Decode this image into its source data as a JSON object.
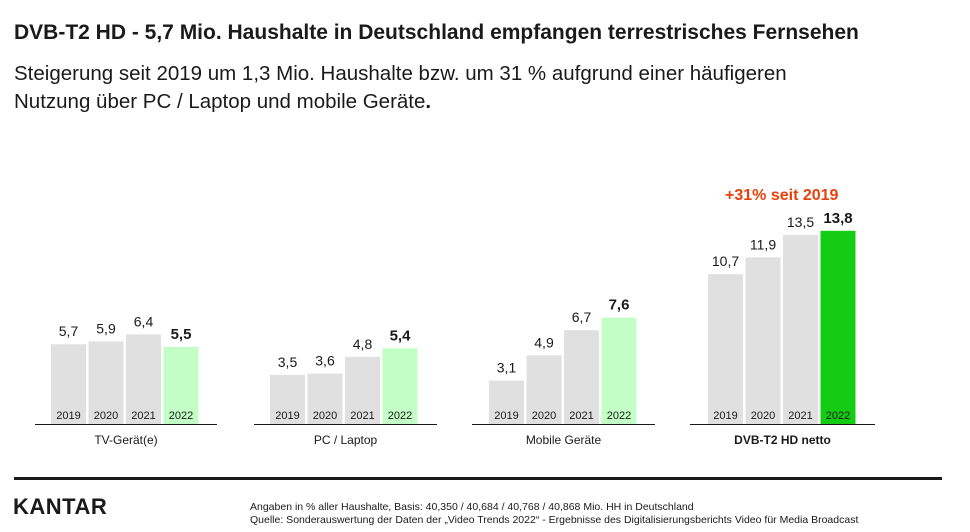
{
  "header": {
    "title": "DVB-T2 HD - 5,7 Mio. Haushalte in Deutschland empfangen terrestrisches Fernsehen",
    "subtitle_line1": "Steigerung seit 2019 um 1,3 Mio. Haushalte bzw. um 31 % aufgrund einer häufigeren",
    "subtitle_line2": "Nutzung über PC / Laptop und mobile Geräte",
    "subtitle_end": "."
  },
  "chart_data": {
    "type": "bar",
    "years": [
      "2019",
      "2020",
      "2021",
      "2022"
    ],
    "groups": [
      {
        "label": "TV-Gerät(e)",
        "values": [
          5.7,
          5.9,
          6.4,
          5.5
        ],
        "value_labels": [
          "5,7",
          "5,9",
          "6,4",
          "5,5"
        ],
        "highlight_color": "#c2fec6",
        "label_bold": false
      },
      {
        "label": "PC / Laptop",
        "values": [
          3.5,
          3.6,
          4.8,
          5.4
        ],
        "value_labels": [
          "3,5",
          "3,6",
          "4,8",
          "5,4"
        ],
        "highlight_color": "#c2fec6",
        "label_bold": false
      },
      {
        "label": "Mobile Geräte",
        "values": [
          3.1,
          4.9,
          6.7,
          7.6
        ],
        "value_labels": [
          "3,1",
          "4,9",
          "6,7",
          "7,6"
        ],
        "highlight_color": "#c2fec6",
        "label_bold": false
      },
      {
        "label": "DVB-T2 HD netto",
        "values": [
          10.7,
          11.9,
          13.5,
          13.8
        ],
        "value_labels": [
          "10,7",
          "11,9",
          "13,5",
          "13,8"
        ],
        "highlight_color": "#14cc14",
        "label_bold": true
      }
    ],
    "annotation": "+31% seit 2019",
    "colors": {
      "past_years": "#e0e0e0",
      "annotation": "#e8400c",
      "axis": "#1a1a1a"
    }
  },
  "footer": {
    "logo": "KANTAR",
    "note_line1": "Angaben in % aller Haushalte, Basis: 40,350 / 40,684 / 40,768 / 40,868 Mio. HH in Deutschland",
    "note_line2": "Quelle: Sonderauswertung der Daten der „Video Trends 2022“ - Ergebnisse des Digitalisierungsberichts Video für Media Broadcast"
  }
}
